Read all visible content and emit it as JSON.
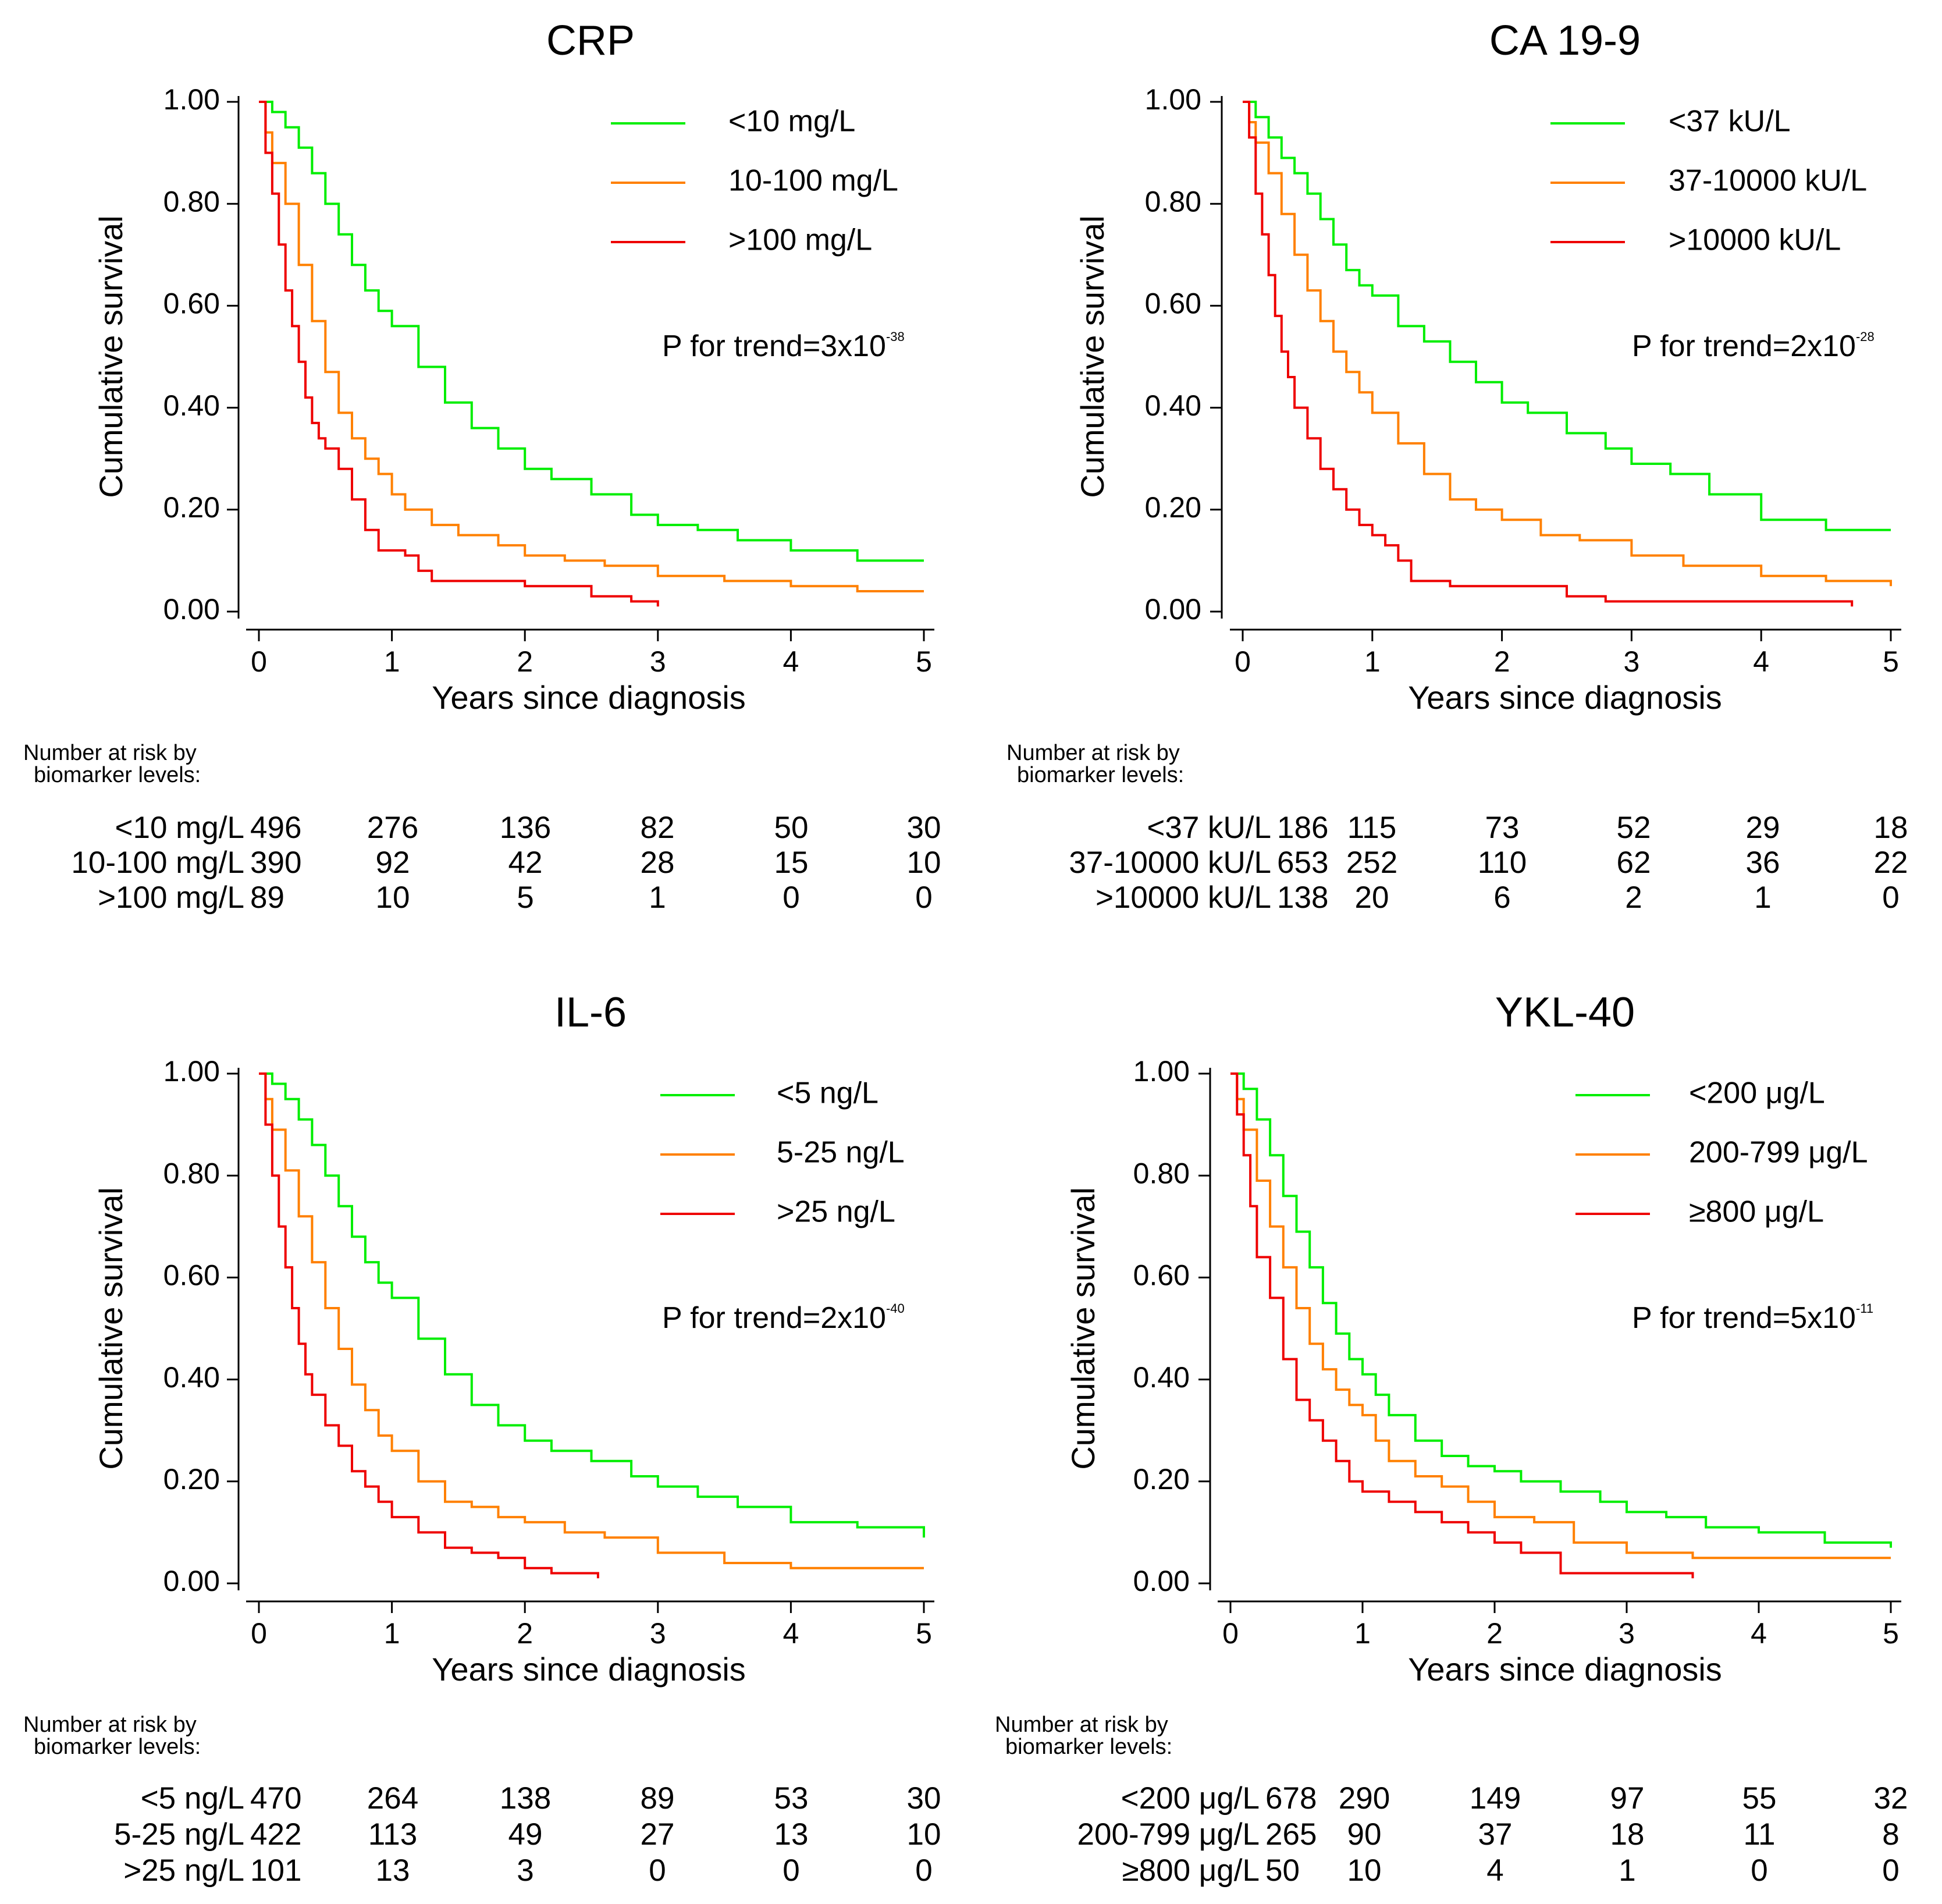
{
  "chart_data": [
    {
      "type": "line",
      "title": "CRP",
      "xlabel": "Years since diagnosis",
      "ylabel": "Cumulative survival",
      "xlim": [
        0,
        5
      ],
      "ylim": [
        0,
        1
      ],
      "xticks": [
        "0",
        "1",
        "2",
        "3",
        "4",
        "5"
      ],
      "yticks": [
        "0.00",
        "0.20",
        "0.40",
        "0.60",
        "0.80",
        "1.00"
      ],
      "legend_position": "top-right",
      "annotation": {
        "prefix": "P for trend=3x10",
        "exponent": "-38"
      },
      "series": [
        {
          "name": "<10 mg/L",
          "color": "#00ee00",
          "x": [
            0,
            0.1,
            0.2,
            0.3,
            0.4,
            0.5,
            0.6,
            0.7,
            0.8,
            0.9,
            1.0,
            1.2,
            1.4,
            1.6,
            1.8,
            2.0,
            2.2,
            2.5,
            2.8,
            3.0,
            3.3,
            3.6,
            4.0,
            4.5,
            5.0
          ],
          "y": [
            1.0,
            0.98,
            0.95,
            0.91,
            0.86,
            0.8,
            0.74,
            0.68,
            0.63,
            0.59,
            0.56,
            0.48,
            0.41,
            0.36,
            0.32,
            0.28,
            0.26,
            0.23,
            0.19,
            0.17,
            0.16,
            0.14,
            0.12,
            0.1,
            0.1
          ]
        },
        {
          "name": "10-100 mg/L",
          "color": "#ff8000",
          "x": [
            0,
            0.05,
            0.1,
            0.2,
            0.3,
            0.4,
            0.5,
            0.6,
            0.7,
            0.8,
            0.9,
            1.0,
            1.1,
            1.3,
            1.5,
            1.8,
            2.0,
            2.3,
            2.6,
            3.0,
            3.5,
            4.0,
            4.5,
            5.0
          ],
          "y": [
            1.0,
            0.94,
            0.88,
            0.8,
            0.68,
            0.57,
            0.47,
            0.39,
            0.34,
            0.3,
            0.27,
            0.23,
            0.2,
            0.17,
            0.15,
            0.13,
            0.11,
            0.1,
            0.09,
            0.07,
            0.06,
            0.05,
            0.04,
            0.04
          ]
        },
        {
          "name": ">100 mg/L",
          "color": "#ee0000",
          "x": [
            0,
            0.05,
            0.1,
            0.15,
            0.2,
            0.25,
            0.3,
            0.35,
            0.4,
            0.45,
            0.5,
            0.6,
            0.7,
            0.8,
            0.9,
            1.0,
            1.1,
            1.2,
            1.3,
            1.6,
            2.0,
            2.5,
            2.8,
            3.0
          ],
          "y": [
            1.0,
            0.9,
            0.82,
            0.72,
            0.63,
            0.56,
            0.49,
            0.42,
            0.37,
            0.34,
            0.32,
            0.28,
            0.22,
            0.16,
            0.12,
            0.12,
            0.11,
            0.08,
            0.06,
            0.06,
            0.05,
            0.03,
            0.02,
            0.01
          ]
        }
      ],
      "risk_table": {
        "heading": [
          "Number at risk by",
          "biomarker levels:"
        ],
        "rows": [
          {
            "label": "<10 mg/L",
            "values": [
              "496",
              "276",
              "136",
              "82",
              "50",
              "30"
            ]
          },
          {
            "label": "10-100 mg/L",
            "values": [
              "390",
              "92",
              "42",
              "28",
              "15",
              "10"
            ]
          },
          {
            "label": ">100 mg/L",
            "values": [
              "89",
              "10",
              "5",
              "1",
              "0",
              "0"
            ]
          }
        ]
      }
    },
    {
      "type": "line",
      "title": "CA 19-9",
      "xlabel": "Years since diagnosis",
      "ylabel": "Cumulative survival",
      "xlim": [
        0,
        5
      ],
      "ylim": [
        0,
        1
      ],
      "xticks": [
        "0",
        "1",
        "2",
        "3",
        "4",
        "5"
      ],
      "yticks": [
        "0.00",
        "0.20",
        "0.40",
        "0.60",
        "0.80",
        "1.00"
      ],
      "legend_position": "top-right",
      "annotation": {
        "prefix": "P for trend=2x10",
        "exponent": "-28"
      },
      "series": [
        {
          "name": "<37 kU/L",
          "color": "#00ee00",
          "x": [
            0,
            0.1,
            0.2,
            0.3,
            0.4,
            0.5,
            0.6,
            0.7,
            0.8,
            0.9,
            1.0,
            1.2,
            1.4,
            1.6,
            1.8,
            2.0,
            2.2,
            2.5,
            2.8,
            3.0,
            3.3,
            3.6,
            4.0,
            4.5,
            5.0
          ],
          "y": [
            1.0,
            0.97,
            0.93,
            0.89,
            0.86,
            0.82,
            0.77,
            0.72,
            0.67,
            0.64,
            0.62,
            0.56,
            0.53,
            0.49,
            0.45,
            0.41,
            0.39,
            0.35,
            0.32,
            0.29,
            0.27,
            0.23,
            0.18,
            0.16,
            0.16
          ]
        },
        {
          "name": "37-10000 kU/L",
          "color": "#ff8000",
          "x": [
            0,
            0.05,
            0.1,
            0.2,
            0.3,
            0.4,
            0.5,
            0.6,
            0.7,
            0.8,
            0.9,
            1.0,
            1.2,
            1.4,
            1.6,
            1.8,
            2.0,
            2.3,
            2.6,
            3.0,
            3.4,
            4.0,
            4.5,
            5.0
          ],
          "y": [
            1.0,
            0.96,
            0.92,
            0.86,
            0.78,
            0.7,
            0.63,
            0.57,
            0.51,
            0.47,
            0.43,
            0.39,
            0.33,
            0.27,
            0.22,
            0.2,
            0.18,
            0.15,
            0.14,
            0.11,
            0.09,
            0.07,
            0.06,
            0.05
          ]
        },
        {
          "name": ">10000 kU/L",
          "color": "#ee0000",
          "x": [
            0,
            0.05,
            0.1,
            0.15,
            0.2,
            0.25,
            0.3,
            0.35,
            0.4,
            0.5,
            0.6,
            0.7,
            0.8,
            0.9,
            1.0,
            1.1,
            1.2,
            1.3,
            1.6,
            2.0,
            2.5,
            2.8,
            3.5,
            4.0,
            4.5,
            4.7
          ],
          "y": [
            1.0,
            0.93,
            0.82,
            0.74,
            0.66,
            0.58,
            0.51,
            0.46,
            0.4,
            0.34,
            0.28,
            0.24,
            0.2,
            0.17,
            0.15,
            0.13,
            0.1,
            0.06,
            0.05,
            0.05,
            0.03,
            0.02,
            0.02,
            0.02,
            0.02,
            0.01
          ]
        }
      ],
      "risk_table": {
        "heading": [
          "Number at risk by",
          "biomarker levels:"
        ],
        "rows": [
          {
            "label": "<37 kU/L",
            "values": [
              "186",
              "115",
              "73",
              "52",
              "29",
              "18"
            ]
          },
          {
            "label": "37-10000 kU/L",
            "values": [
              "653",
              "252",
              "110",
              "62",
              "36",
              "22"
            ]
          },
          {
            "label": ">10000 kU/L",
            "values": [
              "138",
              "20",
              "6",
              "2",
              "1",
              "0"
            ]
          }
        ]
      }
    },
    {
      "type": "line",
      "title": "IL-6",
      "xlabel": "Years since diagnosis",
      "ylabel": "Cumulative survival",
      "xlim": [
        0,
        5
      ],
      "ylim": [
        0,
        1
      ],
      "xticks": [
        "0",
        "1",
        "2",
        "3",
        "4",
        "5"
      ],
      "yticks": [
        "0.00",
        "0.20",
        "0.40",
        "0.60",
        "0.80",
        "1.00"
      ],
      "legend_position": "top-right",
      "annotation": {
        "prefix": "P for trend=2x10",
        "exponent": "-40"
      },
      "series": [
        {
          "name": "<5 ng/L",
          "color": "#00ee00",
          "x": [
            0,
            0.1,
            0.2,
            0.3,
            0.4,
            0.5,
            0.6,
            0.7,
            0.8,
            0.9,
            1.0,
            1.2,
            1.4,
            1.6,
            1.8,
            2.0,
            2.2,
            2.5,
            2.8,
            3.0,
            3.3,
            3.6,
            4.0,
            4.5,
            5.0
          ],
          "y": [
            1.0,
            0.98,
            0.95,
            0.91,
            0.86,
            0.8,
            0.74,
            0.68,
            0.63,
            0.59,
            0.56,
            0.48,
            0.41,
            0.35,
            0.31,
            0.28,
            0.26,
            0.24,
            0.21,
            0.19,
            0.17,
            0.15,
            0.12,
            0.11,
            0.09
          ]
        },
        {
          "name": "5-25 ng/L",
          "color": "#ff8000",
          "x": [
            0,
            0.05,
            0.1,
            0.2,
            0.3,
            0.4,
            0.5,
            0.6,
            0.7,
            0.8,
            0.9,
            1.0,
            1.2,
            1.4,
            1.6,
            1.8,
            2.0,
            2.3,
            2.6,
            3.0,
            3.5,
            4.0,
            4.5,
            5.0
          ],
          "y": [
            1.0,
            0.95,
            0.89,
            0.81,
            0.72,
            0.63,
            0.54,
            0.46,
            0.39,
            0.34,
            0.29,
            0.26,
            0.2,
            0.16,
            0.15,
            0.13,
            0.12,
            0.1,
            0.09,
            0.06,
            0.04,
            0.03,
            0.03,
            0.03
          ]
        },
        {
          "name": ">25 ng/L",
          "color": "#ee0000",
          "x": [
            0,
            0.05,
            0.1,
            0.15,
            0.2,
            0.25,
            0.3,
            0.35,
            0.4,
            0.5,
            0.6,
            0.7,
            0.8,
            0.9,
            1.0,
            1.2,
            1.4,
            1.6,
            1.8,
            2.0,
            2.2,
            2.5,
            2.55
          ],
          "y": [
            1.0,
            0.9,
            0.8,
            0.7,
            0.62,
            0.54,
            0.47,
            0.41,
            0.37,
            0.31,
            0.27,
            0.22,
            0.19,
            0.16,
            0.13,
            0.1,
            0.07,
            0.06,
            0.05,
            0.03,
            0.02,
            0.02,
            0.01
          ]
        }
      ],
      "risk_table": {
        "heading": [
          "Number at risk by",
          "biomarker levels:"
        ],
        "rows": [
          {
            "label": "<5 ng/L",
            "values": [
              "470",
              "264",
              "138",
              "89",
              "53",
              "30"
            ]
          },
          {
            "label": "5-25 ng/L",
            "values": [
              "422",
              "113",
              "49",
              "27",
              "13",
              "10"
            ]
          },
          {
            "label": ">25 ng/L",
            "values": [
              "101",
              "13",
              "3",
              "0",
              "0",
              "0"
            ]
          }
        ]
      }
    },
    {
      "type": "line",
      "title": "YKL-40",
      "xlabel": "Years since diagnosis",
      "ylabel": "Cumulative survival",
      "xlim": [
        0,
        5
      ],
      "ylim": [
        0,
        1
      ],
      "xticks": [
        "0",
        "1",
        "2",
        "3",
        "4",
        "5"
      ],
      "yticks": [
        "0.00",
        "0.20",
        "0.40",
        "0.60",
        "0.80",
        "1.00"
      ],
      "legend_position": "top-right",
      "annotation": {
        "prefix": "P for trend=5x10",
        "exponent": "-11"
      },
      "series": [
        {
          "name": "<200 μg/L",
          "color": "#00ee00",
          "x": [
            0,
            0.1,
            0.2,
            0.3,
            0.4,
            0.5,
            0.6,
            0.7,
            0.8,
            0.9,
            1.0,
            1.1,
            1.2,
            1.4,
            1.6,
            1.8,
            2.0,
            2.2,
            2.5,
            2.8,
            3.0,
            3.3,
            3.6,
            4.0,
            4.5,
            5.0
          ],
          "y": [
            1.0,
            0.97,
            0.91,
            0.84,
            0.76,
            0.69,
            0.62,
            0.55,
            0.49,
            0.44,
            0.41,
            0.37,
            0.33,
            0.28,
            0.25,
            0.23,
            0.22,
            0.2,
            0.18,
            0.16,
            0.14,
            0.13,
            0.11,
            0.1,
            0.08,
            0.07
          ]
        },
        {
          "name": "200-799 μg/L",
          "color": "#ff8000",
          "x": [
            0,
            0.05,
            0.1,
            0.2,
            0.3,
            0.4,
            0.5,
            0.6,
            0.7,
            0.8,
            0.9,
            1.0,
            1.1,
            1.2,
            1.4,
            1.6,
            1.8,
            2.0,
            2.3,
            2.6,
            3.0,
            3.5,
            4.0,
            4.5,
            5.0
          ],
          "y": [
            1.0,
            0.95,
            0.89,
            0.79,
            0.7,
            0.62,
            0.54,
            0.47,
            0.42,
            0.38,
            0.35,
            0.33,
            0.28,
            0.24,
            0.21,
            0.19,
            0.16,
            0.13,
            0.12,
            0.08,
            0.06,
            0.05,
            0.05,
            0.05,
            0.05
          ]
        },
        {
          "name": "≥800 μg/L",
          "color": "#ee0000",
          "x": [
            0,
            0.05,
            0.1,
            0.15,
            0.2,
            0.3,
            0.4,
            0.5,
            0.6,
            0.7,
            0.8,
            0.9,
            1.0,
            1.2,
            1.4,
            1.6,
            1.8,
            2.0,
            2.2,
            2.5,
            3.0,
            3.5
          ],
          "y": [
            1.0,
            0.92,
            0.84,
            0.74,
            0.64,
            0.56,
            0.44,
            0.36,
            0.32,
            0.28,
            0.24,
            0.2,
            0.18,
            0.16,
            0.14,
            0.12,
            0.1,
            0.08,
            0.06,
            0.02,
            0.02,
            0.01
          ]
        }
      ],
      "risk_table": {
        "heading": [
          "Number at risk by",
          "biomarker levels:"
        ],
        "rows": [
          {
            "label": "<200 μg/L",
            "values": [
              "678",
              "290",
              "149",
              "97",
              "55",
              "32"
            ]
          },
          {
            "label": "200-799 μg/L",
            "values": [
              "265",
              "90",
              "37",
              "18",
              "11",
              "8"
            ]
          },
          {
            "label": "≥800 μg/L",
            "values": [
              "50",
              "10",
              "4",
              "1",
              "0",
              "0"
            ]
          }
        ]
      }
    }
  ]
}
